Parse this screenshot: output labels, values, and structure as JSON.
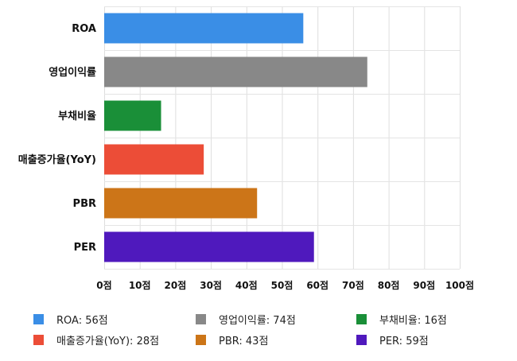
{
  "chart_data": {
    "type": "bar",
    "orientation": "horizontal",
    "categories": [
      "ROA",
      "영업이익률",
      "부채비율",
      "매출증가율(YoY)",
      "PBR",
      "PER"
    ],
    "values": [
      56,
      74,
      16,
      28,
      43,
      59
    ],
    "colors": [
      "#3a8ee6",
      "#888888",
      "#1a8f38",
      "#ec4d37",
      "#cc7518",
      "#4f19bd"
    ],
    "xlim": [
      0,
      100
    ],
    "x_ticks": [
      0,
      10,
      20,
      30,
      40,
      50,
      60,
      70,
      80,
      90,
      100
    ],
    "tick_suffix": "점",
    "grid": true,
    "legend": {
      "placement": "bottom",
      "entries": [
        "ROA: 56점",
        "영업이익률: 74점",
        "부채비율: 16점",
        "매출증가율(YoY): 28점",
        "PBR: 43점",
        "PER: 59점"
      ]
    }
  }
}
